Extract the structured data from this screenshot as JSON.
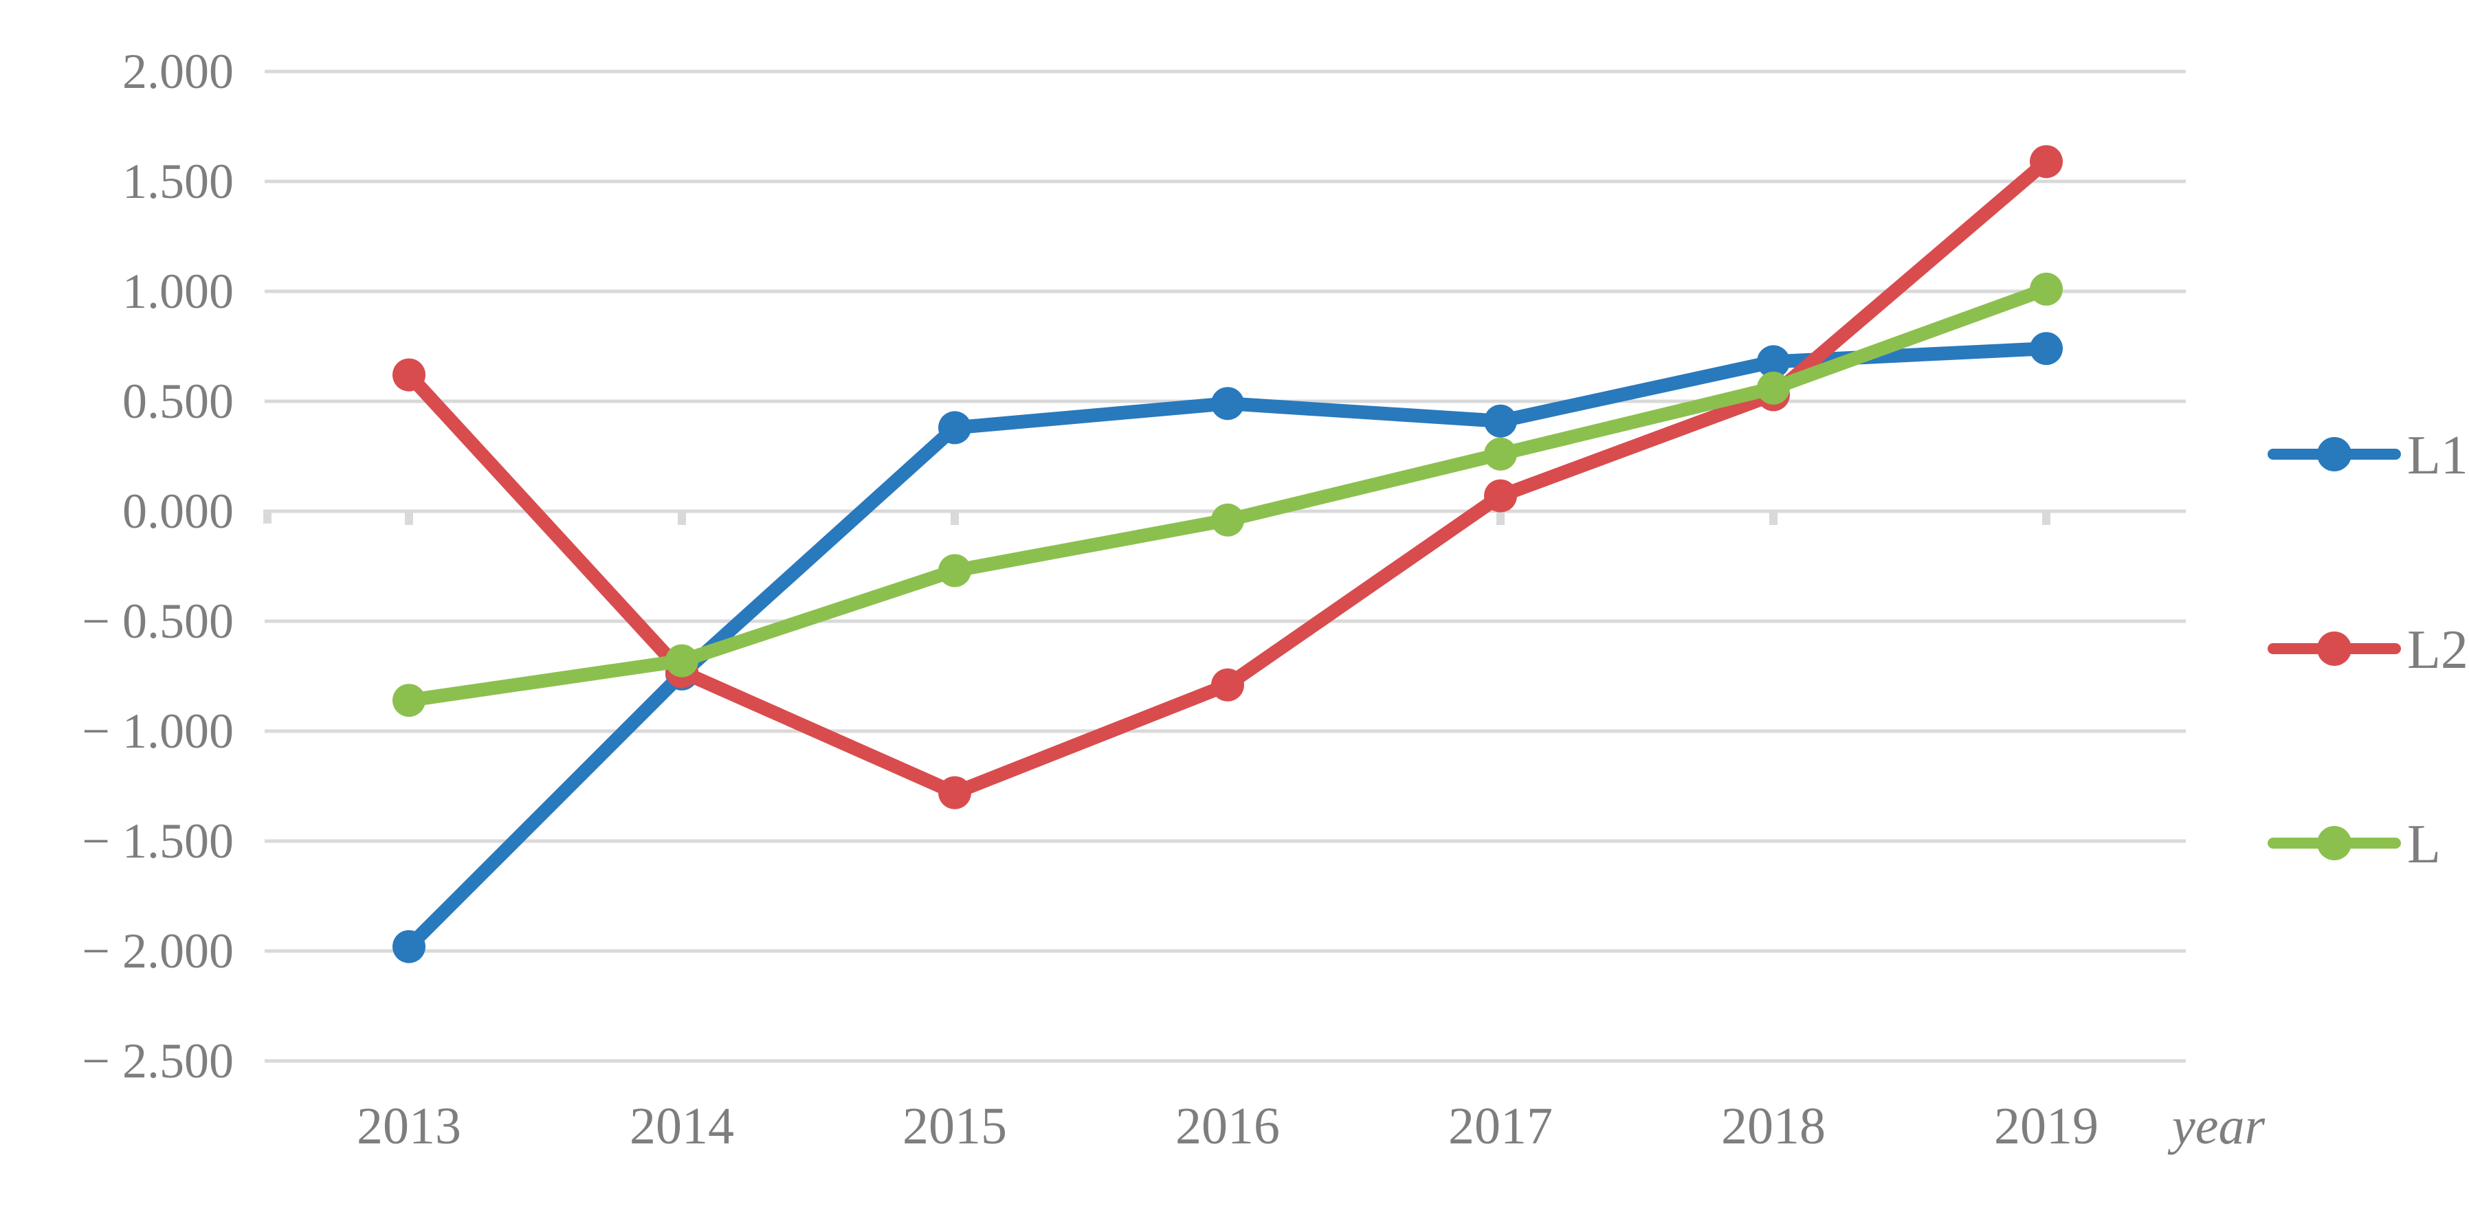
{
  "chart_data": {
    "type": "line",
    "title": "",
    "xlabel": "year",
    "ylabel": "",
    "categories": [
      "2013",
      "2014",
      "2015",
      "2016",
      "2017",
      "2018",
      "2019"
    ],
    "series": [
      {
        "name": "L1",
        "color": "#2979BD",
        "values": [
          -1.98,
          -0.74,
          0.38,
          0.49,
          0.41,
          0.68,
          0.74
        ]
      },
      {
        "name": "L2",
        "color": "#D84C4E",
        "values": [
          0.62,
          -0.73,
          -1.28,
          -0.79,
          0.07,
          0.53,
          1.59
        ]
      },
      {
        "name": "L",
        "color": "#8BC04E",
        "values": [
          -0.86,
          -0.68,
          -0.27,
          -0.04,
          0.26,
          0.56,
          1.01
        ]
      }
    ],
    "ylim": [
      -2.5,
      2.0
    ],
    "ytick_step": 0.5,
    "ytick_labels": [
      "2.000",
      "1.500",
      "1.000",
      "0.500",
      "0.000",
      "− 0.500",
      "− 1.000",
      "− 1.500",
      "− 2.000",
      "− 2.500"
    ],
    "grid": true,
    "legend_position": "right",
    "legend_labels": [
      "L1",
      "L2",
      "L"
    ],
    "gridline_color": "#D9D9D9",
    "text_color": "#7E7E7E"
  }
}
